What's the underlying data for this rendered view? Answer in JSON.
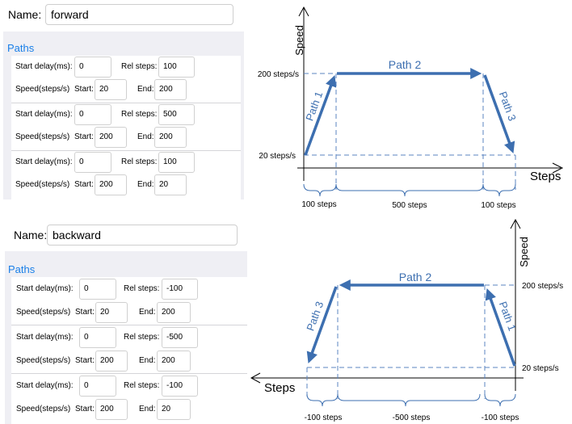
{
  "forward": {
    "name_label": "Name:",
    "name_value": "forward",
    "paths_title": "Paths",
    "rows": [
      {
        "start_delay_label": "Start delay(ms):",
        "start_delay": "0",
        "rel_steps_label": "Rel steps:",
        "rel_steps": "100",
        "speed_label": "Speed(steps/s)",
        "start_label": "Start:",
        "start": "20",
        "end_label": "End:",
        "end": "200"
      },
      {
        "start_delay_label": "Start delay(ms):",
        "start_delay": "0",
        "rel_steps_label": "Rel steps:",
        "rel_steps": "500",
        "speed_label": "Speed(steps/s)",
        "start_label": "Start:",
        "start": "200",
        "end_label": "End:",
        "end": "200"
      },
      {
        "start_delay_label": "Start delay(ms):",
        "start_delay": "0",
        "rel_steps_label": "Rel steps:",
        "rel_steps": "100",
        "speed_label": "Speed(steps/s)",
        "start_label": "Start:",
        "start": "200",
        "end_label": "End:",
        "end": "20"
      }
    ]
  },
  "backward": {
    "name_label": "Name:",
    "name_value": "backward",
    "paths_title": "Paths",
    "rows": [
      {
        "start_delay_label": "Start delay(ms):",
        "start_delay": "0",
        "rel_steps_label": "Rel steps:",
        "rel_steps": "-100",
        "speed_label": "Speed(steps/s)",
        "start_label": "Start:",
        "start": "20",
        "end_label": "End:",
        "end": "200"
      },
      {
        "start_delay_label": "Start delay(ms):",
        "start_delay": "0",
        "rel_steps_label": "Rel steps:",
        "rel_steps": "-500",
        "speed_label": "Speed(steps/s)",
        "start_label": "Start:",
        "start": "200",
        "end_label": "End:",
        "end": "200"
      },
      {
        "start_delay_label": "Start delay(ms):",
        "start_delay": "0",
        "rel_steps_label": "Rel steps:",
        "rel_steps": "-100",
        "speed_label": "Speed(steps/s)",
        "start_label": "Start:",
        "start": "200",
        "end_label": "End:",
        "end": "20"
      }
    ]
  },
  "diagram_forward": {
    "y_axis_label": "Speed",
    "x_axis_label": "Steps",
    "y_tick_high": "200 steps/s",
    "y_tick_low": "20 steps/s",
    "path_labels": [
      "Path 1",
      "Path 2",
      "Path 3"
    ],
    "span_labels": [
      "100 steps",
      "500 steps",
      "100 steps"
    ]
  },
  "diagram_backward": {
    "y_axis_label": "Speed",
    "x_axis_label": "Steps",
    "y_tick_high": "200 steps/s",
    "y_tick_low": "20 steps/s",
    "path_labels": [
      "Path 1",
      "Path 2",
      "Path 3"
    ],
    "span_labels": [
      "-100 steps",
      "-500 steps",
      "-100 steps"
    ]
  },
  "colors": {
    "path": "#3d6fb0",
    "dashed": "#5b84c0",
    "link": "#1a7fe8"
  }
}
